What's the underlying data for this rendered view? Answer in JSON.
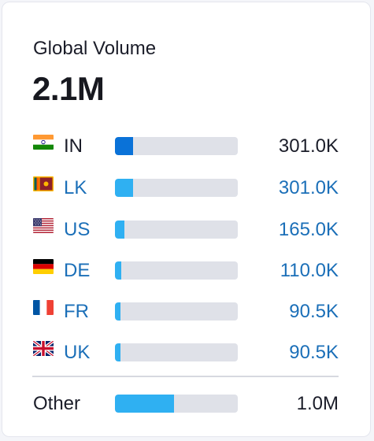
{
  "widget": {
    "title": "Global Volume",
    "total": "2.1M"
  },
  "countries": [
    {
      "code": "IN",
      "value": "301.0K",
      "share": 0.145,
      "flag": "india-flag-icon",
      "bar_color": "#0a72d8",
      "link": false
    },
    {
      "code": "LK",
      "value": "301.0K",
      "share": 0.145,
      "flag": "sri-lanka-flag-icon",
      "bar_color": "#2fb0f2",
      "link": true
    },
    {
      "code": "US",
      "value": "165.0K",
      "share": 0.08,
      "flag": "usa-flag-icon",
      "bar_color": "#2fb0f2",
      "link": true
    },
    {
      "code": "DE",
      "value": "110.0K",
      "share": 0.053,
      "flag": "germany-flag-icon",
      "bar_color": "#2fb0f2",
      "link": true
    },
    {
      "code": "FR",
      "value": "90.5K",
      "share": 0.044,
      "flag": "france-flag-icon",
      "bar_color": "#2fb0f2",
      "link": true
    },
    {
      "code": "UK",
      "value": "90.5K",
      "share": 0.044,
      "flag": "uk-flag-icon",
      "bar_color": "#2fb0f2",
      "link": true
    }
  ],
  "other": {
    "label": "Other",
    "value": "1.0M",
    "share": 0.48,
    "bar_color": "#2fb0f2"
  },
  "colors": {
    "bar_track": "#dfe1e8",
    "link_text": "#1b6fb8",
    "primary_text": "#1b1d29"
  }
}
